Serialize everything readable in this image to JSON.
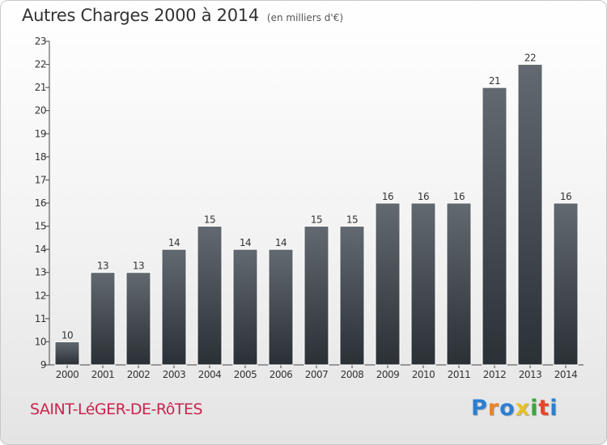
{
  "title": "Autres Charges 2000 à 2014",
  "subtitle": "(en milliers d'€)",
  "location": "SAINT-LéGER-DE-RôTES",
  "logo": {
    "text": "Proxiti",
    "colors": [
      "#2a7fd4",
      "#e8852a",
      "#2a7fd4",
      "#e8c12a",
      "#3aa83a",
      "#e8452a",
      "#2a7fd4"
    ]
  },
  "colors": {
    "bar_top": "#626970",
    "bar_bottom": "#2a3035",
    "location": "#c8254e"
  },
  "chart_data": {
    "type": "bar",
    "title": "Autres Charges 2000 à 2014",
    "subtitle": "(en milliers d'€)",
    "xlabel": "",
    "ylabel": "",
    "ylim": [
      9,
      23
    ],
    "yticks": [
      9,
      10,
      11,
      12,
      13,
      14,
      15,
      16,
      17,
      18,
      19,
      20,
      21,
      22,
      23
    ],
    "grid": false,
    "categories": [
      "2000",
      "2001",
      "2002",
      "2003",
      "2004",
      "2005",
      "2006",
      "2007",
      "2008",
      "2009",
      "2010",
      "2011",
      "2012",
      "2013",
      "2014"
    ],
    "values": [
      10,
      13,
      13,
      14,
      15,
      14,
      14,
      15,
      15,
      16,
      16,
      16,
      21,
      22,
      16
    ]
  }
}
